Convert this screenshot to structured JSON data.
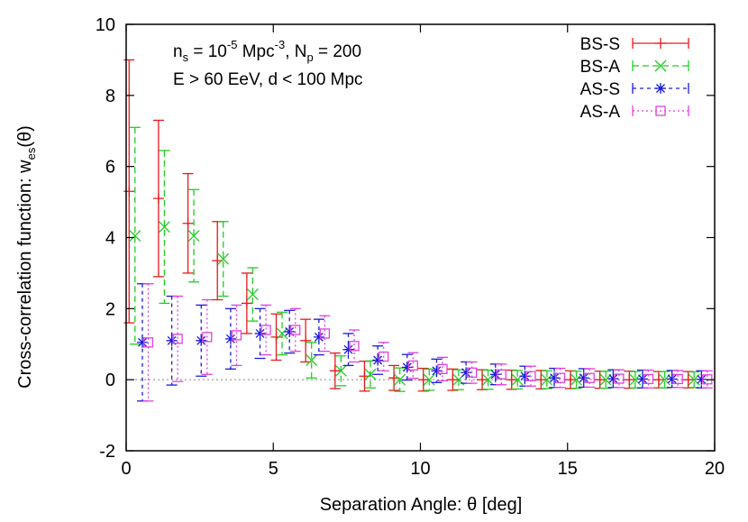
{
  "chart_data": {
    "type": "scatter",
    "xlabel": "Separation Angle: θ [deg]",
    "ylabel": "Cross-correlation function: w",
    "ylabel_sub": "es",
    "ylabel_tail": "(θ)",
    "xlim": [
      0,
      20
    ],
    "ylim": [
      -2,
      10
    ],
    "x_ticks": [
      0,
      5,
      10,
      15,
      20
    ],
    "y_ticks": [
      -2,
      0,
      2,
      4,
      6,
      8,
      10
    ],
    "grid": false,
    "zero_line": true,
    "legend_position": "top-right",
    "annotation_line1": {
      "n": "n",
      "n_sub": "s",
      "eq1": " = 10",
      "exp1": "-5",
      "unit": " Mpc",
      "exp2": "-3",
      "sep": ", N",
      "p_sub": "p",
      "eq2": " = 200"
    },
    "annotation_line2": "E > 60 EeV, d < 100 Mpc",
    "series": [
      {
        "name": "BS-S",
        "color": "#e41a1c",
        "marker": "plus",
        "dash": "",
        "x": [
          0.1,
          1.1,
          2.1,
          3.1,
          4.1,
          5.1,
          6.1,
          7.1,
          8.1,
          9.1,
          10.1,
          11.1,
          12.1,
          13.1,
          14.1,
          15.1,
          16.1,
          17.1,
          18.1,
          19.1
        ],
        "y": [
          5.3,
          5.1,
          4.4,
          3.35,
          2.15,
          1.2,
          1.1,
          0.25,
          0.1,
          0.05,
          0.0,
          0.0,
          0.0,
          0.0,
          0.0,
          0.0,
          0.0,
          0.0,
          0.0,
          0.0
        ],
        "err": [
          3.7,
          2.2,
          1.4,
          1.1,
          0.85,
          0.65,
          0.6,
          0.5,
          0.42,
          0.35,
          0.32,
          0.3,
          0.28,
          0.27,
          0.26,
          0.25,
          0.24,
          0.24,
          0.23,
          0.23
        ]
      },
      {
        "name": "BS-A",
        "color": "#22cc22",
        "marker": "cross",
        "dash": "7,4",
        "x": [
          0.3,
          1.3,
          2.3,
          3.3,
          4.3,
          5.3,
          6.3,
          7.3,
          8.3,
          9.3,
          10.3,
          11.3,
          12.3,
          13.3,
          14.3,
          15.3,
          16.3,
          17.3,
          18.3,
          19.3
        ],
        "y": [
          4.05,
          4.3,
          4.05,
          3.4,
          2.4,
          1.3,
          0.55,
          0.25,
          0.15,
          0.0,
          0.0,
          0.0,
          0.0,
          0.0,
          0.0,
          0.0,
          0.0,
          0.0,
          0.0,
          0.0
        ],
        "err": [
          3.05,
          2.15,
          1.3,
          1.05,
          0.75,
          0.6,
          0.5,
          0.42,
          0.38,
          0.33,
          0.3,
          0.28,
          0.27,
          0.26,
          0.25,
          0.24,
          0.24,
          0.23,
          0.23,
          0.22
        ]
      },
      {
        "name": "AS-S",
        "color": "#1a1adb",
        "marker": "star",
        "dash": "4,4",
        "x": [
          0.55,
          1.55,
          2.55,
          3.55,
          4.55,
          5.55,
          6.55,
          7.55,
          8.55,
          9.55,
          10.55,
          11.55,
          12.55,
          13.55,
          14.55,
          15.55,
          16.55,
          17.55,
          18.55,
          19.55
        ],
        "y": [
          1.05,
          1.1,
          1.1,
          1.15,
          1.3,
          1.35,
          1.2,
          0.85,
          0.55,
          0.35,
          0.25,
          0.2,
          0.15,
          0.1,
          0.05,
          0.05,
          0.03,
          0.02,
          0.02,
          0.01
        ],
        "err": [
          1.65,
          1.25,
          1.0,
          0.85,
          0.7,
          0.6,
          0.5,
          0.45,
          0.4,
          0.36,
          0.33,
          0.3,
          0.29,
          0.28,
          0.27,
          0.26,
          0.25,
          0.25,
          0.24,
          0.24
        ]
      },
      {
        "name": "AS-A",
        "color": "#e040e0",
        "marker": "square",
        "dash": "2,3",
        "x": [
          0.75,
          1.75,
          2.75,
          3.75,
          4.75,
          5.75,
          6.75,
          7.75,
          8.75,
          9.75,
          10.75,
          11.75,
          12.75,
          13.75,
          14.75,
          15.75,
          16.75,
          17.75,
          18.75,
          19.75
        ],
        "y": [
          1.05,
          1.15,
          1.2,
          1.25,
          1.4,
          1.4,
          1.3,
          0.95,
          0.65,
          0.4,
          0.3,
          0.2,
          0.15,
          0.1,
          0.05,
          0.05,
          0.03,
          0.02,
          0.02,
          0.01
        ],
        "err": [
          1.65,
          1.2,
          1.05,
          0.85,
          0.7,
          0.6,
          0.5,
          0.45,
          0.4,
          0.36,
          0.33,
          0.3,
          0.29,
          0.28,
          0.27,
          0.26,
          0.25,
          0.25,
          0.24,
          0.24
        ]
      }
    ]
  }
}
